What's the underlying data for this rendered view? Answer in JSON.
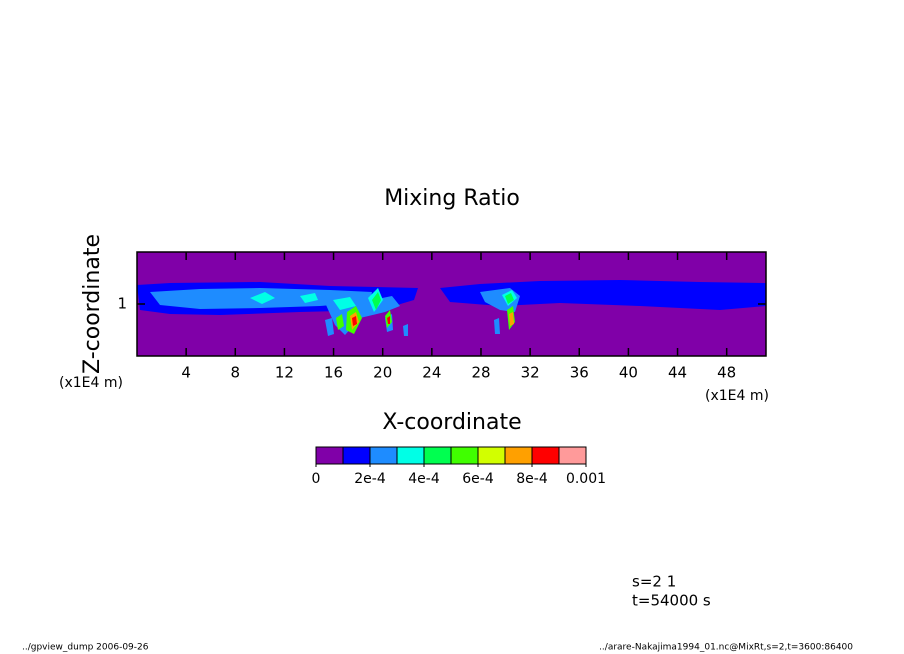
{
  "chart_data": {
    "type": "contour",
    "title": "Mixing Ratio",
    "x_label": "X-coordinate",
    "y_label": "Z-coordinate",
    "x_unit": "(x1E4 m)",
    "y_unit": "(x1E4 m)",
    "xlim": [
      0,
      51.2
    ],
    "xticks": [
      4,
      8,
      12,
      16,
      20,
      24,
      28,
      32,
      36,
      40,
      44,
      48
    ],
    "ylim": [
      0,
      2
    ],
    "yticks": [
      1
    ],
    "levels": [
      0,
      0.0001,
      0.0002,
      0.0003,
      0.0004,
      0.0005,
      0.0006,
      0.0007,
      0.0008,
      0.0009,
      0.001
    ],
    "colors": [
      "#8000a8",
      "#0000ff",
      "#1e8cff",
      "#00ffe6",
      "#00ff50",
      "#40ff00",
      "#d2ff00",
      "#ffa000",
      "#ff0000",
      "#ff9a9a"
    ],
    "colorbar_ticks": [
      0,
      {
        "value": 0.0002,
        "label": "2e-4"
      },
      {
        "value": 0.0004,
        "label": "4e-4"
      },
      {
        "value": 0.0006,
        "label": "6e-4"
      },
      {
        "value": 0.0008,
        "label": "8e-4"
      },
      0.001
    ],
    "annotations": [
      "s=2 1",
      "t=54000 s"
    ],
    "footer_left": "../gpview_dump  2006-09-26",
    "footer_right": "../arare-Nakajima1994_01.nc@MixRt,s=2,t=3600:86400"
  }
}
